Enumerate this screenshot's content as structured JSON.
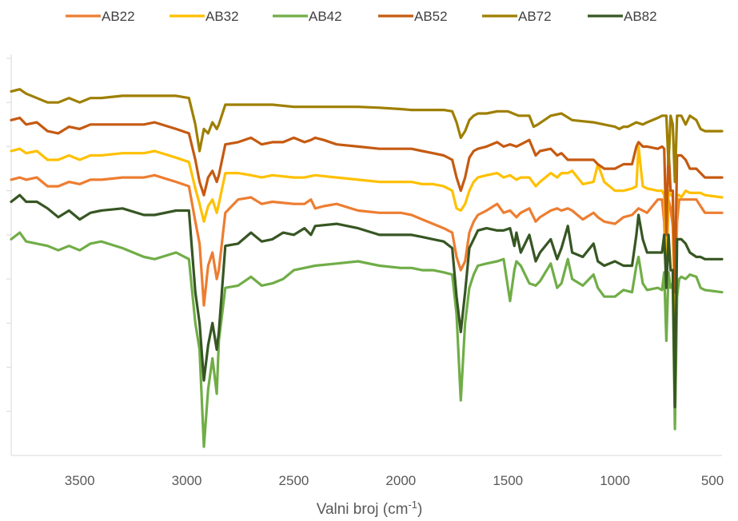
{
  "chart_data": {
    "type": "line",
    "title": "",
    "xlabel": "Valni broj (cm",
    "xlabel_sup": "-1",
    "xlabel_end": ")",
    "ylabel": "",
    "xlim": [
      3820,
      500
    ],
    "x_reversed": true,
    "ylim": [
      0,
      9
    ],
    "x_ticks": [
      3500,
      3000,
      2500,
      2000,
      1500,
      1000,
      500
    ],
    "x_tick_labels": [
      "3500",
      "3000",
      "2500",
      "2000",
      "1500",
      "1000",
      "500"
    ],
    "y_ticks": [
      1,
      2,
      3,
      4,
      5,
      6,
      7,
      8,
      9
    ],
    "y_tick_labels_visible": false,
    "legend_position": "top",
    "series": [
      {
        "name": "AB22",
        "color": "#ED7D31",
        "x": [
          3820,
          3780,
          3750,
          3700,
          3650,
          3600,
          3550,
          3500,
          3450,
          3400,
          3300,
          3200,
          3150,
          3050,
          2990,
          2960,
          2940,
          2920,
          2900,
          2880,
          2860,
          2850,
          2820,
          2760,
          2700,
          2650,
          2600,
          2500,
          2450,
          2420,
          2400,
          2360,
          2300,
          2200,
          2100,
          2000,
          1950,
          1900,
          1850,
          1800,
          1760,
          1740,
          1720,
          1700,
          1680,
          1660,
          1640,
          1600,
          1550,
          1520,
          1490,
          1460,
          1440,
          1400,
          1370,
          1350,
          1300,
          1270,
          1250,
          1220,
          1200,
          1150,
          1100,
          1080,
          1050,
          1000,
          960,
          920,
          900,
          890,
          870,
          850,
          800,
          780,
          770,
          760,
          750,
          740,
          730,
          720,
          710,
          700,
          690,
          670,
          650,
          620,
          600,
          580,
          500
        ],
        "y": [
          6.25,
          6.3,
          6.25,
          6.3,
          6.1,
          6.1,
          6.2,
          6.15,
          6.25,
          6.25,
          6.3,
          6.3,
          6.35,
          6.2,
          6.1,
          5.3,
          4.8,
          3.4,
          4.3,
          4.6,
          4.0,
          4.2,
          5.5,
          5.8,
          5.85,
          5.7,
          5.75,
          5.7,
          5.7,
          5.8,
          5.6,
          5.65,
          5.7,
          5.55,
          5.5,
          5.5,
          5.45,
          5.35,
          5.25,
          5.15,
          5.05,
          4.5,
          4.2,
          4.4,
          5.05,
          5.3,
          5.45,
          5.55,
          5.7,
          5.5,
          5.55,
          5.4,
          5.5,
          5.6,
          5.3,
          5.4,
          5.55,
          5.6,
          5.55,
          5.6,
          5.55,
          5.35,
          5.5,
          5.4,
          5.3,
          5.25,
          5.4,
          5.45,
          5.55,
          5.6,
          5.55,
          5.5,
          5.8,
          5.8,
          5.3,
          4.0,
          5.8,
          5.6,
          5.2,
          3.3,
          5.3,
          5.8,
          5.8,
          5.8,
          5.8,
          5.8,
          5.65,
          5.5,
          5.5
        ]
      },
      {
        "name": "AB32",
        "color": "#FFC000",
        "x": [
          3820,
          3780,
          3750,
          3700,
          3650,
          3600,
          3550,
          3500,
          3450,
          3400,
          3300,
          3200,
          3150,
          3050,
          2990,
          2960,
          2940,
          2920,
          2900,
          2880,
          2860,
          2850,
          2820,
          2760,
          2700,
          2650,
          2600,
          2500,
          2450,
          2400,
          2300,
          2200,
          2100,
          2000,
          1950,
          1900,
          1850,
          1800,
          1760,
          1740,
          1720,
          1700,
          1680,
          1660,
          1640,
          1600,
          1550,
          1520,
          1490,
          1460,
          1440,
          1400,
          1370,
          1350,
          1300,
          1270,
          1250,
          1220,
          1200,
          1150,
          1100,
          1080,
          1050,
          1000,
          960,
          920,
          900,
          890,
          870,
          850,
          800,
          780,
          770,
          760,
          750,
          740,
          730,
          720,
          710,
          700,
          690,
          670,
          650,
          620,
          600,
          580,
          500
        ],
        "y": [
          6.9,
          6.95,
          6.85,
          6.9,
          6.7,
          6.7,
          6.8,
          6.7,
          6.8,
          6.8,
          6.85,
          6.85,
          6.9,
          6.75,
          6.65,
          6.05,
          5.7,
          5.3,
          5.65,
          5.8,
          5.5,
          5.7,
          6.4,
          6.4,
          6.35,
          6.3,
          6.35,
          6.3,
          6.3,
          6.35,
          6.3,
          6.25,
          6.2,
          6.2,
          6.2,
          6.15,
          6.15,
          6.1,
          6.0,
          5.6,
          5.55,
          5.7,
          6.0,
          6.2,
          6.3,
          6.35,
          6.4,
          6.3,
          6.35,
          6.25,
          6.3,
          6.3,
          6.1,
          6.2,
          6.4,
          6.3,
          6.4,
          6.4,
          6.45,
          6.15,
          6.2,
          6.6,
          6.2,
          6.0,
          6.0,
          6.05,
          6.1,
          7.0,
          6.1,
          6.05,
          6.0,
          6.0,
          5.9,
          4.5,
          6.0,
          5.9,
          5.9,
          2.8,
          5.9,
          5.9,
          5.85,
          6.0,
          5.95,
          5.95,
          5.95,
          5.9,
          5.85
        ]
      },
      {
        "name": "AB42",
        "color": "#70AD47",
        "x": [
          3820,
          3780,
          3750,
          3700,
          3650,
          3600,
          3550,
          3500,
          3450,
          3400,
          3300,
          3200,
          3150,
          3050,
          2990,
          2960,
          2940,
          2920,
          2900,
          2880,
          2860,
          2850,
          2820,
          2760,
          2700,
          2650,
          2600,
          2550,
          2500,
          2450,
          2400,
          2300,
          2200,
          2100,
          2000,
          1950,
          1900,
          1850,
          1800,
          1760,
          1740,
          1720,
          1700,
          1680,
          1660,
          1640,
          1600,
          1550,
          1520,
          1490,
          1470,
          1460,
          1440,
          1400,
          1370,
          1350,
          1300,
          1270,
          1250,
          1220,
          1200,
          1150,
          1100,
          1080,
          1050,
          1000,
          960,
          920,
          900,
          890,
          870,
          850,
          800,
          780,
          770,
          760,
          750,
          740,
          730,
          720,
          710,
          700,
          690,
          670,
          650,
          620,
          600,
          580,
          500
        ],
        "y": [
          4.9,
          5.05,
          4.85,
          4.8,
          4.75,
          4.65,
          4.75,
          4.65,
          4.8,
          4.85,
          4.7,
          4.5,
          4.45,
          4.6,
          4.45,
          3.0,
          2.4,
          0.2,
          1.5,
          2.2,
          1.4,
          2.6,
          3.8,
          3.85,
          4.05,
          3.85,
          3.9,
          4.0,
          4.2,
          4.25,
          4.3,
          4.35,
          4.4,
          4.3,
          4.25,
          4.25,
          4.2,
          4.2,
          4.15,
          4.1,
          3.2,
          1.25,
          3.0,
          3.8,
          4.1,
          4.3,
          4.35,
          4.4,
          4.45,
          3.5,
          4.2,
          4.4,
          4.3,
          3.9,
          3.85,
          3.95,
          4.35,
          3.8,
          3.9,
          4.45,
          4.0,
          3.85,
          4.1,
          3.8,
          3.6,
          3.6,
          3.75,
          3.7,
          4.3,
          4.5,
          3.9,
          3.75,
          3.8,
          3.75,
          4.15,
          2.6,
          4.15,
          3.8,
          3.9,
          0.6,
          3.6,
          4.0,
          4.05,
          4.0,
          4.1,
          4.05,
          3.8,
          3.75,
          3.7
        ]
      },
      {
        "name": "AB52",
        "color": "#C55A11",
        "x": [
          3820,
          3780,
          3750,
          3700,
          3650,
          3600,
          3550,
          3500,
          3450,
          3400,
          3300,
          3200,
          3150,
          3050,
          2990,
          2960,
          2940,
          2920,
          2900,
          2880,
          2860,
          2850,
          2820,
          2760,
          2700,
          2650,
          2600,
          2550,
          2500,
          2450,
          2420,
          2400,
          2360,
          2300,
          2200,
          2100,
          2000,
          1950,
          1900,
          1850,
          1800,
          1760,
          1740,
          1720,
          1700,
          1680,
          1660,
          1640,
          1600,
          1550,
          1520,
          1490,
          1460,
          1440,
          1400,
          1370,
          1350,
          1300,
          1270,
          1250,
          1220,
          1200,
          1150,
          1100,
          1080,
          1050,
          1000,
          960,
          920,
          900,
          890,
          870,
          850,
          800,
          780,
          770,
          760,
          750,
          740,
          730,
          720,
          710,
          700,
          690,
          670,
          650,
          620,
          600,
          580,
          500
        ],
        "y": [
          7.6,
          7.65,
          7.5,
          7.55,
          7.35,
          7.3,
          7.45,
          7.4,
          7.5,
          7.5,
          7.5,
          7.5,
          7.55,
          7.4,
          7.3,
          6.7,
          6.2,
          5.9,
          6.3,
          6.45,
          6.2,
          6.35,
          7.05,
          7.1,
          7.2,
          7.05,
          7.1,
          7.1,
          7.2,
          7.1,
          7.15,
          7.2,
          7.15,
          7.05,
          7.0,
          6.95,
          6.95,
          6.95,
          6.9,
          6.85,
          6.8,
          6.7,
          6.3,
          6.0,
          6.3,
          6.75,
          6.9,
          6.95,
          7.0,
          7.1,
          7.0,
          7.05,
          7.0,
          7.05,
          7.15,
          6.8,
          6.9,
          6.95,
          6.8,
          6.85,
          6.7,
          6.7,
          6.7,
          6.7,
          6.6,
          6.5,
          6.5,
          6.6,
          6.6,
          7.0,
          7.1,
          7.0,
          7.0,
          6.95,
          7.0,
          6.95,
          5.0,
          6.95,
          6.0,
          6.0,
          3.7,
          6.8,
          6.8,
          6.8,
          6.7,
          6.5,
          6.5,
          6.4,
          6.3,
          6.3
        ]
      },
      {
        "name": "AB72",
        "color": "#9E7F00",
        "x": [
          3820,
          3780,
          3750,
          3700,
          3650,
          3600,
          3550,
          3500,
          3450,
          3400,
          3300,
          3200,
          3150,
          3050,
          2990,
          2960,
          2940,
          2920,
          2900,
          2880,
          2860,
          2850,
          2820,
          2760,
          2700,
          2600,
          2500,
          2400,
          2300,
          2200,
          2100,
          2000,
          1950,
          1900,
          1850,
          1800,
          1760,
          1740,
          1720,
          1700,
          1680,
          1660,
          1640,
          1600,
          1550,
          1500,
          1450,
          1400,
          1380,
          1360,
          1300,
          1250,
          1200,
          1100,
          1000,
          980,
          960,
          940,
          920,
          900,
          870,
          850,
          800,
          780,
          770,
          760,
          750,
          740,
          730,
          720,
          710,
          700,
          690,
          670,
          650,
          620,
          600,
          580,
          500
        ],
        "y": [
          8.25,
          8.3,
          8.2,
          8.1,
          8.0,
          8.0,
          8.1,
          8.0,
          8.1,
          8.1,
          8.15,
          8.15,
          8.15,
          8.15,
          8.1,
          7.5,
          6.9,
          7.4,
          7.3,
          7.55,
          7.4,
          7.5,
          7.95,
          7.95,
          7.95,
          7.95,
          7.9,
          7.9,
          7.9,
          7.9,
          7.88,
          7.85,
          7.83,
          7.83,
          7.83,
          7.83,
          7.8,
          7.55,
          7.2,
          7.35,
          7.6,
          7.7,
          7.75,
          7.75,
          7.8,
          7.8,
          7.7,
          7.7,
          7.45,
          7.5,
          7.7,
          7.75,
          7.6,
          7.55,
          7.45,
          7.4,
          7.45,
          7.45,
          7.5,
          7.55,
          7.5,
          7.55,
          7.65,
          7.7,
          7.7,
          7.7,
          6.6,
          7.7,
          7.5,
          6.2,
          7.7,
          7.7,
          7.7,
          7.5,
          7.7,
          7.6,
          7.4,
          7.35,
          7.35
        ]
      },
      {
        "name": "AB82",
        "color": "#375623",
        "x": [
          3820,
          3780,
          3750,
          3700,
          3650,
          3600,
          3550,
          3500,
          3450,
          3400,
          3300,
          3200,
          3150,
          3050,
          2990,
          2960,
          2940,
          2920,
          2900,
          2880,
          2860,
          2850,
          2820,
          2760,
          2700,
          2650,
          2600,
          2550,
          2500,
          2450,
          2420,
          2400,
          2300,
          2200,
          2100,
          2000,
          1950,
          1900,
          1850,
          1800,
          1760,
          1740,
          1720,
          1700,
          1680,
          1660,
          1640,
          1600,
          1550,
          1520,
          1490,
          1470,
          1460,
          1440,
          1400,
          1370,
          1350,
          1300,
          1270,
          1250,
          1220,
          1200,
          1150,
          1100,
          1080,
          1050,
          1000,
          960,
          920,
          900,
          890,
          870,
          850,
          800,
          780,
          770,
          760,
          750,
          740,
          730,
          720,
          710,
          700,
          690,
          670,
          650,
          620,
          600,
          580,
          500
        ],
        "y": [
          5.75,
          5.9,
          5.75,
          5.75,
          5.6,
          5.4,
          5.55,
          5.35,
          5.5,
          5.55,
          5.6,
          5.45,
          5.45,
          5.55,
          5.55,
          3.7,
          3.0,
          1.7,
          2.5,
          3.0,
          2.4,
          2.8,
          4.75,
          4.8,
          5.05,
          4.85,
          4.9,
          5.05,
          5.0,
          5.15,
          5.0,
          5.2,
          5.25,
          5.15,
          5.0,
          5.0,
          5.0,
          4.95,
          4.9,
          4.85,
          4.7,
          3.6,
          2.8,
          3.7,
          4.7,
          4.9,
          5.1,
          5.15,
          5.1,
          5.1,
          5.15,
          4.75,
          5.05,
          4.6,
          5.0,
          4.4,
          4.6,
          4.9,
          4.45,
          4.7,
          5.2,
          4.6,
          4.5,
          4.8,
          4.4,
          4.3,
          4.4,
          4.3,
          4.3,
          5.0,
          5.45,
          4.9,
          4.6,
          4.6,
          4.6,
          5.0,
          3.8,
          5.0,
          4.2,
          4.2,
          1.1,
          4.9,
          4.9,
          4.9,
          4.8,
          4.6,
          4.5,
          4.5,
          4.45,
          4.45
        ]
      }
    ]
  }
}
